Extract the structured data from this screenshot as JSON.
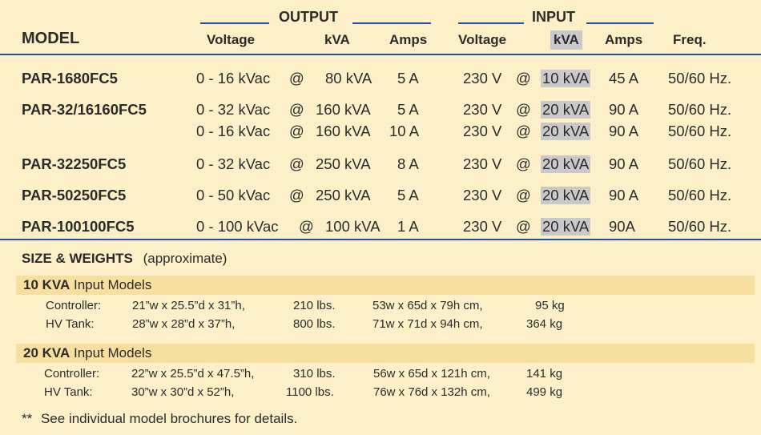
{
  "header": {
    "output_group": "OUTPUT",
    "input_group": "INPUT",
    "model_label": "MODEL",
    "columns": [
      "Voltage",
      "kVA",
      "Amps",
      "Voltage",
      "kVA",
      "Amps",
      "Freq."
    ]
  },
  "models": [
    {
      "name": "PAR-1680FC5",
      "rows": [
        {
          "out_voltage": "0 - 16 kVac",
          "at1": "@",
          "out_kva": "80 kVA",
          "out_amps": "5 A",
          "in_voltage": "230 V",
          "at2": "@",
          "in_kva": "10 kVA",
          "in_amps": "45 A",
          "freq": "50/60 Hz."
        }
      ]
    },
    {
      "name": "PAR-32/16160FC5",
      "rows": [
        {
          "out_voltage": "0 - 32 kVac",
          "at1": "@",
          "out_kva": "160 kVA",
          "out_amps": "5 A",
          "in_voltage": "230 V",
          "at2": "@",
          "in_kva": "20 kVA",
          "in_amps": "90 A",
          "freq": "50/60 Hz."
        },
        {
          "out_voltage": "0 - 16 kVac",
          "at1": "@",
          "out_kva": "160 kVA",
          "out_amps": "10 A",
          "in_voltage": "230 V",
          "at2": "@",
          "in_kva": "20 kVA",
          "in_amps": "90 A",
          "freq": "50/60 Hz."
        }
      ]
    },
    {
      "name": "PAR-32250FC5",
      "rows": [
        {
          "out_voltage": "0 - 32 kVac",
          "at1": "@",
          "out_kva": "250 kVA",
          "out_amps": "8 A",
          "in_voltage": "230 V",
          "at2": "@",
          "in_kva": "20 kVA",
          "in_amps": "90 A",
          "freq": "50/60 Hz."
        }
      ]
    },
    {
      "name": "PAR-50250FC5",
      "rows": [
        {
          "out_voltage": "0 - 50 kVac",
          "at1": "@",
          "out_kva": "250 kVA",
          "out_amps": "5 A",
          "in_voltage": "230 V",
          "at2": "@",
          "in_kva": "20 kVA",
          "in_amps": "90 A",
          "freq": "50/60 Hz."
        }
      ]
    },
    {
      "name": "PAR-100100FC5",
      "rows": [
        {
          "out_voltage": "0 - 100 kVac",
          "at1": "@",
          "out_kva": "100 kVA",
          "out_amps": "1 A",
          "in_voltage": "230 V",
          "at2": "@",
          "in_kva": "20 kVA",
          "in_amps": "90A",
          "freq": "50/60 Hz."
        }
      ]
    }
  ],
  "sizes": {
    "title": "SIZE & WEIGHTS",
    "note": "(approximate)",
    "groups": [
      {
        "label_bold": "10 KVA",
        "label_rest": " Input Models",
        "items": [
          {
            "name": "Controller:",
            "imperial_dims": "21”w x 25.5”d x 31”h,",
            "lbs": "210 lbs.",
            "metric_dims": "53w x 65d x 79h  cm,",
            "kg": "95 kg"
          },
          {
            "name": "HV Tank:",
            "imperial_dims": "28”w x 28”d x 37”h,",
            "lbs": "800 lbs.",
            "metric_dims": "71w x 71d x 94h  cm,",
            "kg": "364 kg"
          }
        ]
      },
      {
        "label_bold": "20 KVA",
        "label_rest": " Input Models",
        "items": [
          {
            "name": "Controller:",
            "imperial_dims": "22”w x 25.5”d x 47.5”h,",
            "lbs": "310 lbs.",
            "metric_dims": "56w x 65d x 121h  cm,",
            "kg": "141 kg"
          },
          {
            "name": "HV Tank:",
            "imperial_dims": "30”w x 30”d x 52”h,",
            "lbs": "1100 lbs.",
            "metric_dims": "76w x 76d x 132h  cm,",
            "kg": "499 kg"
          }
        ]
      }
    ],
    "footnote_mark": "**",
    "footnote": "See individual model brochures for details."
  },
  "colors": {
    "background": "#fdf0c8",
    "rule": "#1e4fa3",
    "highlight": "#c9c9c9",
    "band": "#f7dfa0"
  }
}
